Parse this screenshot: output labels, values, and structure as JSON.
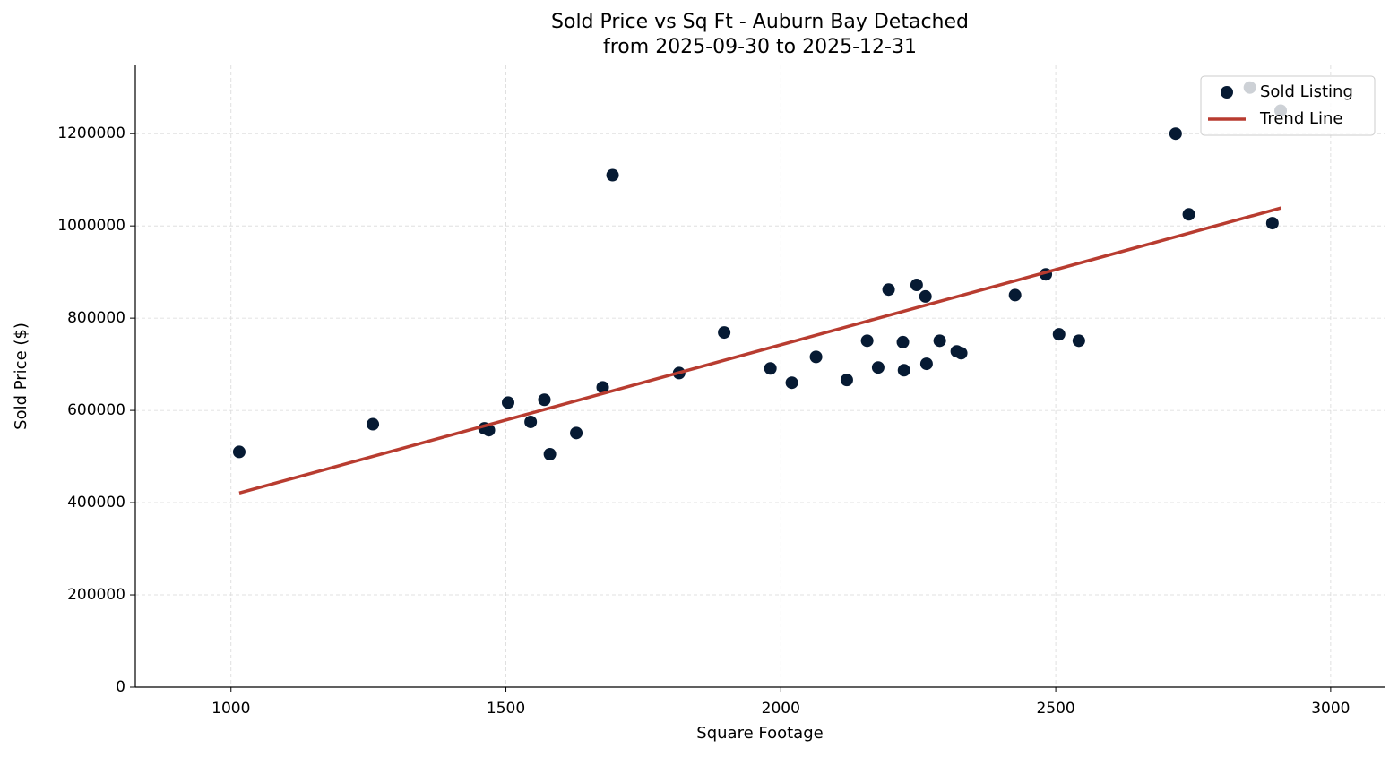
{
  "chart_data": {
    "type": "scatter",
    "title": "Sold Price vs Sq Ft - Auburn Bay Detached",
    "subtitle": "from 2025-09-30 to 2025-12-31",
    "x_label": "Square Footage",
    "y_label": "Sold Price ($)",
    "xlim": [
      826,
      3098
    ],
    "ylim": [
      0,
      1348000
    ],
    "xticks": [
      1000,
      1500,
      2000,
      2500,
      3000
    ],
    "yticks": [
      0,
      200000,
      400000,
      600000,
      800000,
      1000000,
      1200000
    ],
    "grid": true,
    "legend": "upper right",
    "series": [
      {
        "name": "Sold Listing",
        "type": "scatter",
        "color": "#061a33",
        "x": [
          1015,
          1258,
          1461,
          1469,
          1504,
          1545,
          1570,
          1580,
          1628,
          1676,
          1694,
          1815,
          1897,
          1981,
          2020,
          2064,
          2120,
          2157,
          2177,
          2196,
          2222,
          2224,
          2247,
          2263,
          2265,
          2289,
          2320,
          2328,
          2426,
          2482,
          2506,
          2542,
          2718,
          2742,
          2853,
          2894,
          2909
        ],
        "values": [
          510000,
          570000,
          561000,
          557000,
          617000,
          575000,
          623000,
          505000,
          551000,
          650000,
          1110000,
          681000,
          769000,
          691000,
          660000,
          716000,
          666000,
          751000,
          693000,
          862000,
          748000,
          687000,
          872000,
          847000,
          701000,
          751000,
          728000,
          724000,
          850000,
          895000,
          765000,
          751000,
          1200000,
          1025000,
          1300000,
          1006000,
          1250000
        ]
      },
      {
        "name": "Trend Line",
        "type": "line",
        "color": "#b83c30",
        "x": [
          1015,
          2910
        ],
        "values": [
          421000,
          1039000
        ]
      }
    ]
  }
}
